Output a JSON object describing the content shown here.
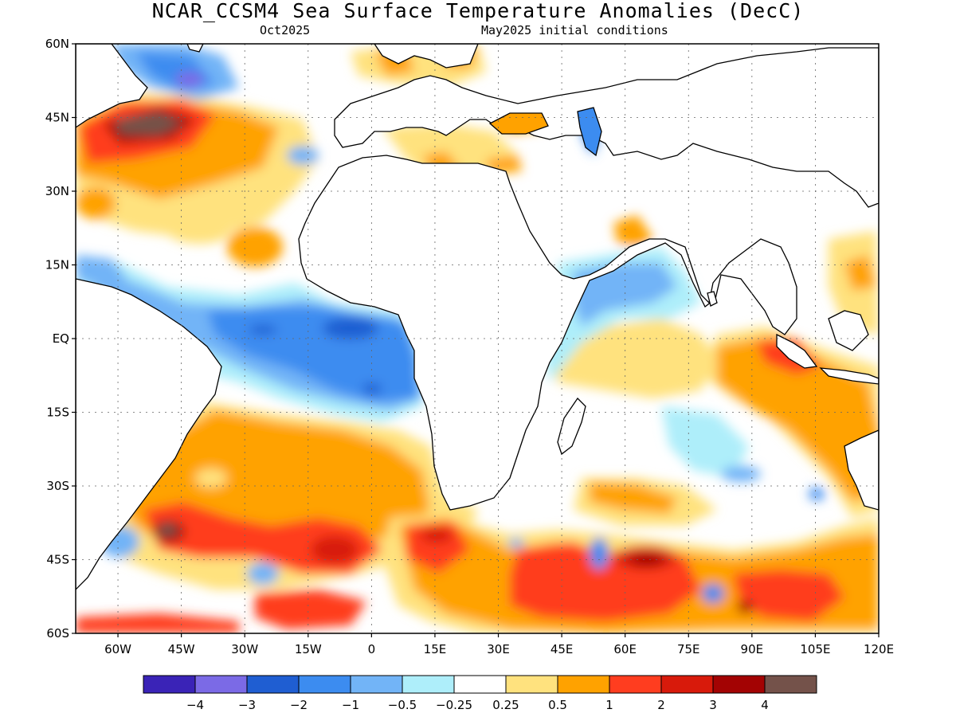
{
  "title": "NCAR_CCSM4 Sea Surface Temperature Anomalies (DecC)",
  "valid_label": "Oct2025",
  "init_label": "May2025 initial conditions",
  "map": {
    "lat_labels": [
      "60N",
      "45N",
      "30N",
      "15N",
      "EQ",
      "15S",
      "30S",
      "45S",
      "60S"
    ],
    "lon_labels": [
      "60W",
      "45W",
      "30W",
      "15W",
      "0",
      "15E",
      "30E",
      "45E",
      "60E",
      "75E",
      "90E",
      "105E",
      "120E"
    ],
    "lon_range": [
      -70,
      120
    ],
    "lat_range": [
      -60,
      60
    ],
    "grid": "dotted"
  },
  "colorbar": {
    "colors": [
      "#3a23b7",
      "#7b6ae6",
      "#1f5ed2",
      "#3c8cf0",
      "#72b4f7",
      "#aeeefa",
      "#ffffff",
      "#ffe27e",
      "#ffa200",
      "#ff3d1f",
      "#d81a0b",
      "#a30303",
      "#74524a"
    ],
    "labels": [
      "−4",
      "−3",
      "−2",
      "−1",
      "−0.5",
      "−0.25",
      "0.25",
      "0.5",
      "1",
      "2",
      "3",
      "4"
    ]
  }
}
